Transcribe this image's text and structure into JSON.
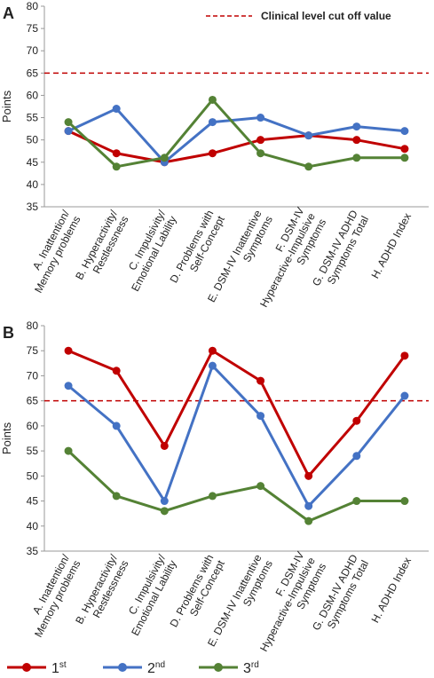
{
  "chart_data": [
    {
      "type": "line",
      "panel": "A",
      "ylabel": "Points",
      "categories": [
        "A. Inattention/\nMemory problems",
        "B. Hyperactivity/\nRestlessness",
        "C. Impulsivity/\nEmotional Lability",
        "D. Problems with\nSelf-Concept",
        "E. DSM-IV Inattentive\nSymptoms",
        "F. DSM-IV\nHyperactive-Impulsive\nSymptoms",
        "G. DSM-IV ADHD\nSymptoms Total",
        "H. ADHD Index"
      ],
      "series": [
        {
          "color": "#c00000",
          "values": [
            52,
            47,
            45,
            47,
            50,
            51,
            50,
            48
          ]
        },
        {
          "color": "#4472c4",
          "values": [
            52,
            57,
            45,
            54,
            55,
            51,
            53,
            52
          ]
        },
        {
          "color": "#548235",
          "values": [
            54,
            44,
            46,
            59,
            47,
            44,
            46,
            46
          ]
        }
      ],
      "ylim": [
        35,
        80
      ],
      "yticks": [
        35,
        40,
        45,
        50,
        55,
        60,
        65,
        70,
        75,
        80
      ],
      "reference_line": {
        "value": 65,
        "label": "Clinical level cut off value",
        "color": "#c00000"
      }
    },
    {
      "type": "line",
      "panel": "B",
      "ylabel": "Points",
      "categories": [
        "A. Inattention/\nMemory problems",
        "B. Hyperactivity/\nRestlessness",
        "C. Impulsivity/\nEmotional Lability",
        "D. Problems with\nSelf-Concept",
        "E. DSM-IV Inattentive\nSymptoms",
        "F. DSM-IV\nHyperactive-Impulsive\nSymptoms",
        "G. DSM-IV ADHD\nSymptoms Total",
        "H. ADHD Index"
      ],
      "series": [
        {
          "name": "1st",
          "color": "#c00000",
          "values": [
            75,
            71,
            56,
            75,
            69,
            50,
            61,
            74
          ]
        },
        {
          "name": "2nd",
          "color": "#4472c4",
          "values": [
            68,
            60,
            45,
            72,
            62,
            44,
            54,
            66
          ]
        },
        {
          "name": "3rd",
          "color": "#548235",
          "values": [
            55,
            46,
            43,
            46,
            48,
            41,
            45,
            45
          ]
        }
      ],
      "ylim": [
        35,
        80
      ],
      "yticks": [
        35,
        40,
        45,
        50,
        55,
        60,
        65,
        70,
        75,
        80
      ],
      "reference_line": {
        "value": 65,
        "color": "#c00000"
      }
    }
  ]
}
